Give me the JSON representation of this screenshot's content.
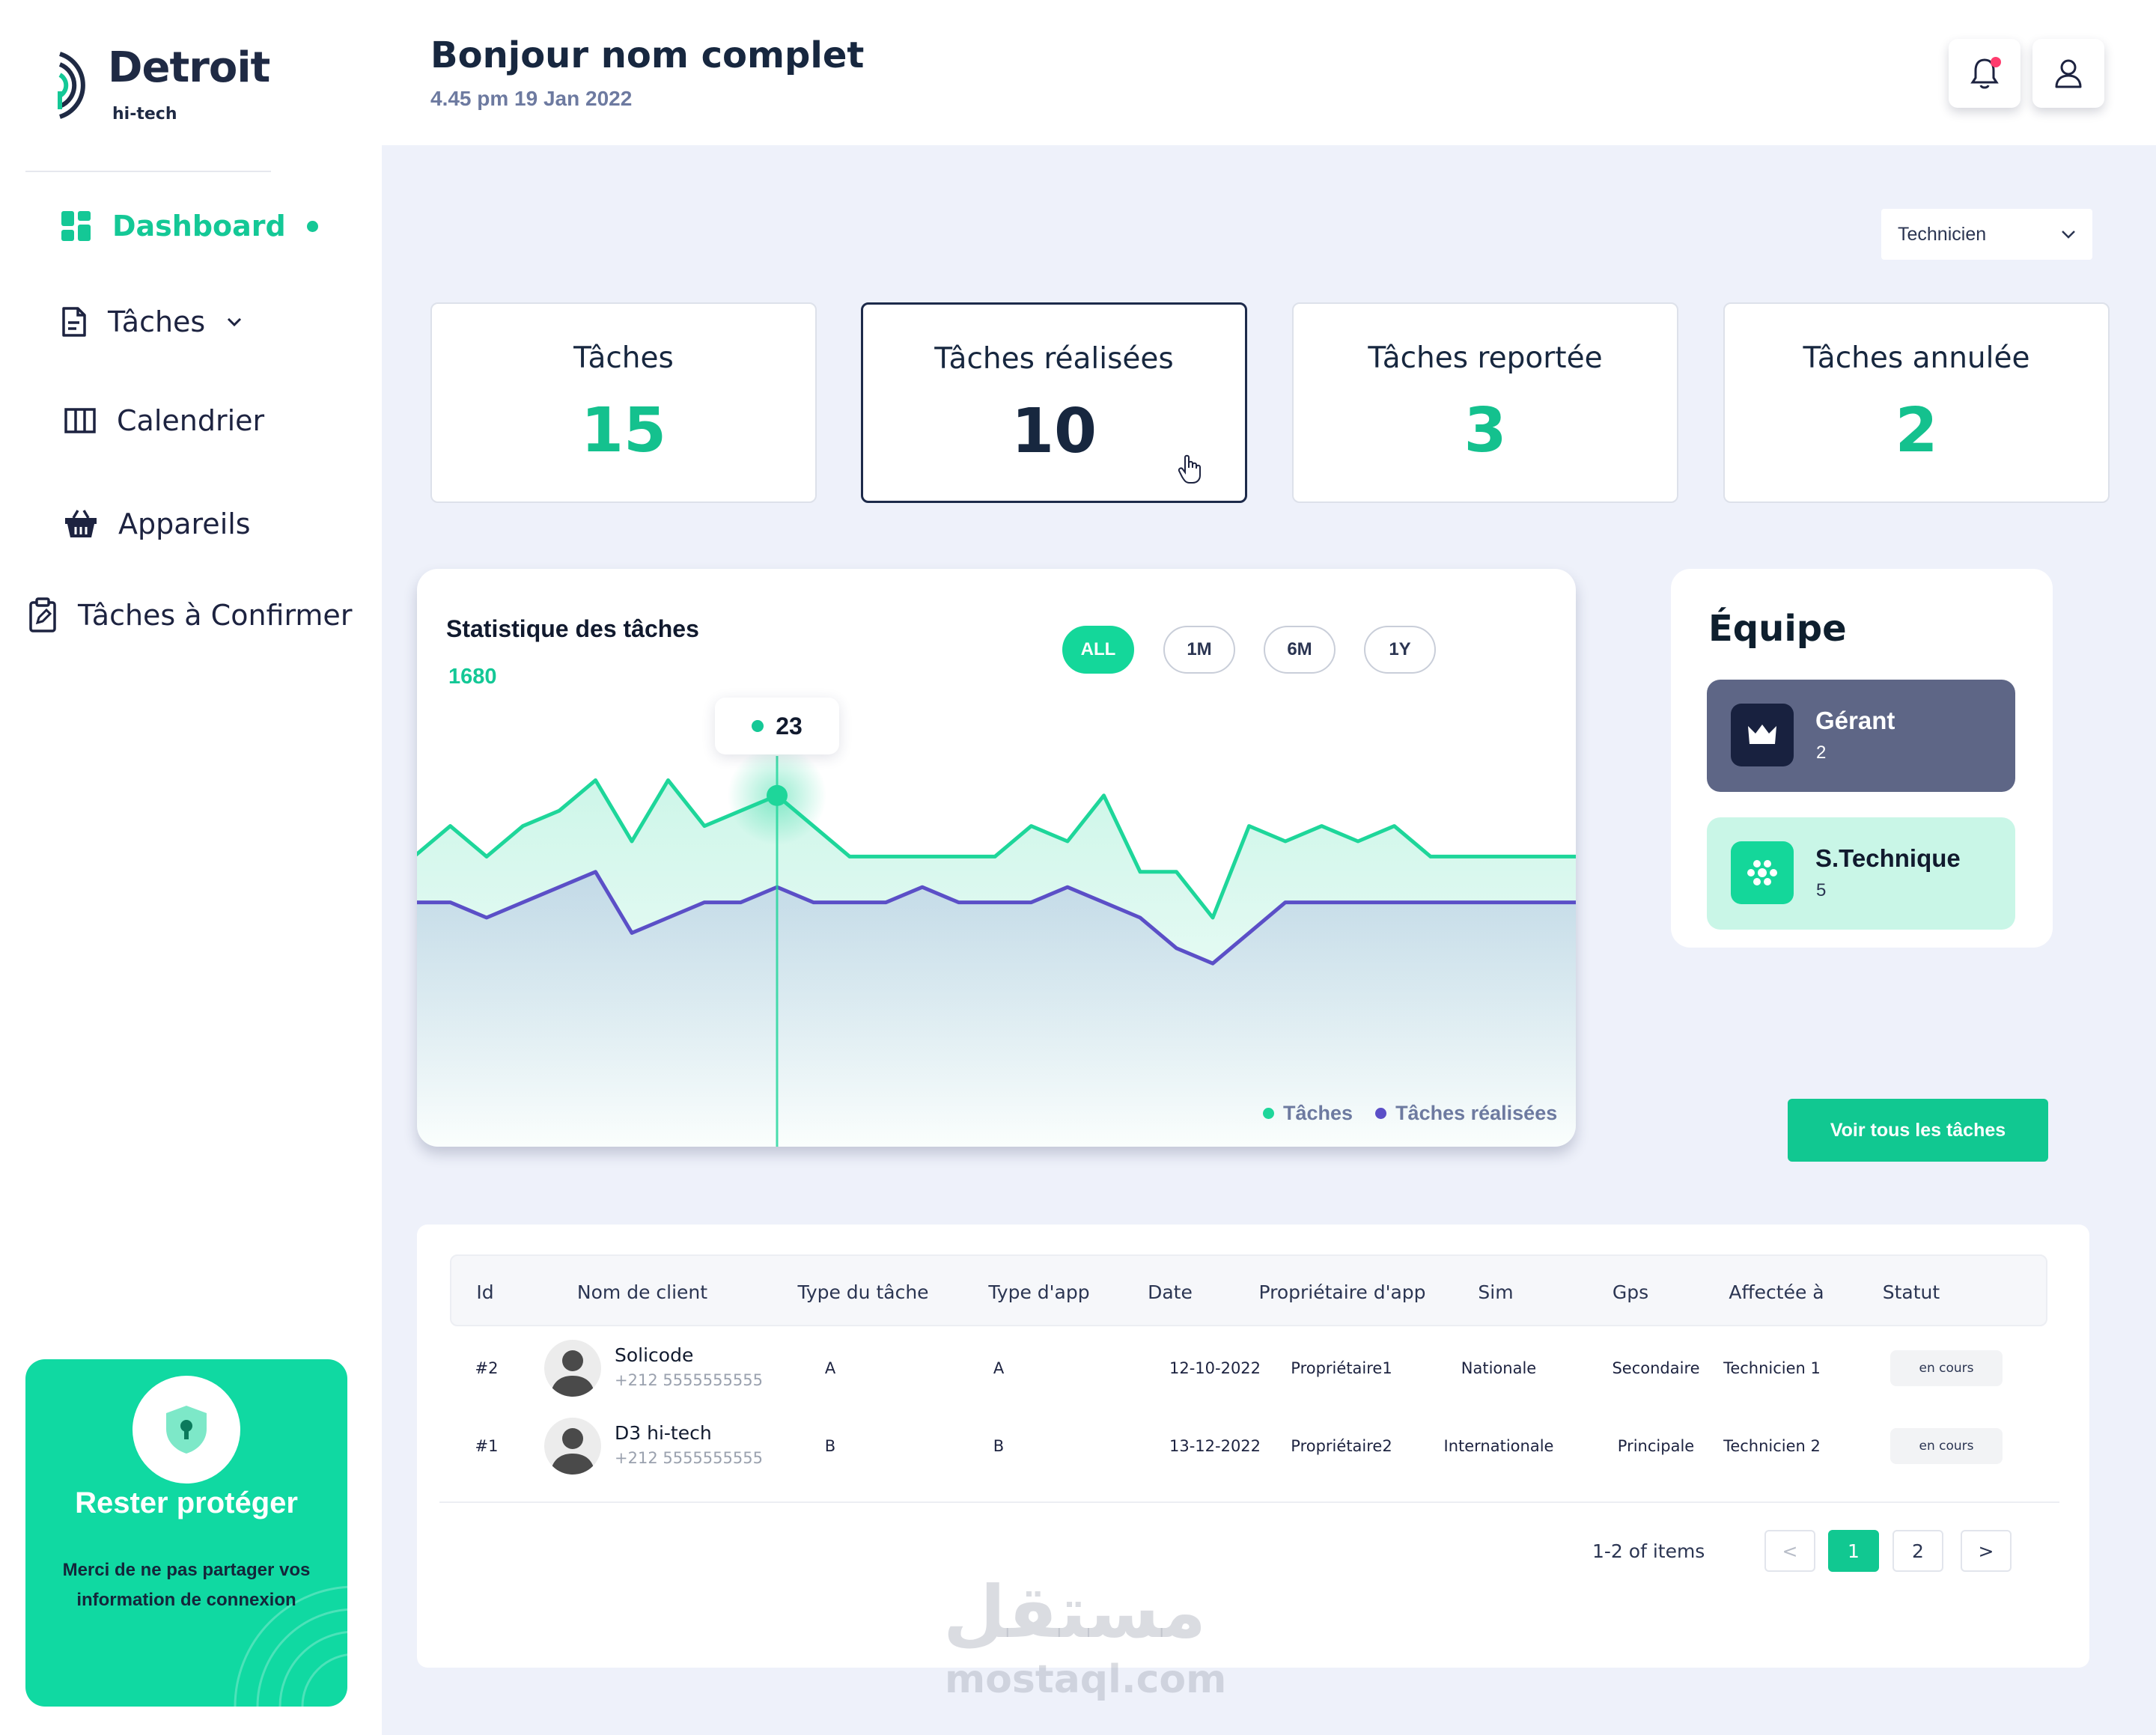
{
  "brand": {
    "name": "Detroit",
    "sub": "hi-tech"
  },
  "sidebar": {
    "items": [
      {
        "label": "Dashboard",
        "icon": "dashboard-grid-icon",
        "active": true
      },
      {
        "label": "Tâches",
        "icon": "document-icon",
        "has_chevron": true
      },
      {
        "label": "Calendrier",
        "icon": "columns-icon"
      },
      {
        "label": "Appareils",
        "icon": "basket-icon"
      },
      {
        "label": "Tâches à Confirmer",
        "icon": "clipboard-edit-icon"
      }
    ],
    "protect_card": {
      "title": "Rester protéger",
      "text": "Merci de ne pas partager vos information de connexion",
      "icon": "shield-lock-icon"
    }
  },
  "header": {
    "greeting": "Bonjour nom complet",
    "datetime": "4.45 pm 19 Jan 2022",
    "notification_icon": "bell-icon",
    "user_icon": "user-icon"
  },
  "filter": {
    "selected": "Technicien"
  },
  "stats": [
    {
      "label": "Tâches",
      "value": "15"
    },
    {
      "label": "Tâches réalisées",
      "value": "10",
      "active": true
    },
    {
      "label": "Tâches reportée",
      "value": "3"
    },
    {
      "label": "Tâches annulée",
      "value": "2"
    }
  ],
  "chart": {
    "title": "Statistique des tâches",
    "total": "1680",
    "ranges": [
      "ALL",
      "1M",
      "6M",
      "1Y"
    ],
    "active_range": "ALL",
    "tooltip_value": "23",
    "legend": [
      "Tâches",
      "Tâches réalisées"
    ],
    "colors": {
      "taches": "#1ed69a",
      "realisees": "#5b4fc7"
    }
  },
  "chart_data": {
    "type": "line",
    "title": "Statistique des tâches",
    "x": [
      0,
      1,
      2,
      3,
      4,
      5,
      6,
      7,
      8,
      9,
      10,
      11,
      12,
      13,
      14,
      15,
      16,
      17,
      18,
      19,
      20,
      21,
      22,
      23,
      24,
      25,
      26,
      27,
      28,
      29,
      30,
      31,
      32
    ],
    "series": [
      {
        "name": "Tâches",
        "values": [
          19,
          21,
          19,
          21,
          22,
          24,
          20,
          24,
          21,
          22,
          23,
          21,
          19,
          19,
          19,
          19,
          19,
          21,
          20,
          23,
          18,
          18,
          15,
          21,
          20,
          21,
          20,
          21,
          19,
          19,
          19,
          19,
          19
        ]
      },
      {
        "name": "Tâches réalisées",
        "values": [
          16,
          16,
          15,
          16,
          17,
          18,
          14,
          15,
          16,
          16,
          17,
          16,
          16,
          16,
          17,
          16,
          16,
          16,
          17,
          16,
          15,
          13,
          12,
          14,
          16,
          16,
          16,
          16,
          16,
          16,
          16,
          16,
          16
        ]
      }
    ],
    "highlight": {
      "series": "Tâches",
      "value": 23
    },
    "legend": "bottom-right",
    "grid": false
  },
  "team": {
    "title": "Équipe",
    "groups": [
      {
        "name": "Gérant",
        "count": "2",
        "icon": "crown-icon"
      },
      {
        "name": "S.Technique",
        "count": "5",
        "icon": "team-dots-icon"
      }
    ]
  },
  "see_all_label": "Voir tous les tâches",
  "table": {
    "columns": [
      "Id",
      "Nom de client",
      "Type du tâche",
      "Type d'app",
      "Date",
      "Propriétaire d'app",
      "Sim",
      "Gps",
      "Affectée à",
      "Statut"
    ],
    "rows": [
      {
        "id": "#2",
        "client": "Solicode",
        "phone": "+212 5555555555",
        "type_tache": "A",
        "type_app": "A",
        "date": "12-10-2022",
        "proprietaire": "Propriétaire1",
        "sim": "Nationale",
        "gps": "Secondaire",
        "affectee": "Technicien 1",
        "statut": "en cours"
      },
      {
        "id": "#1",
        "client": "D3 hi-tech",
        "phone": "+212 5555555555",
        "type_tache": "B",
        "type_app": "B",
        "date": "13-12-2022",
        "proprietaire": "Propriétaire2",
        "sim": "Internationale",
        "gps": "Principale",
        "affectee": "Technicien 2",
        "statut": "en cours"
      }
    ],
    "pagination": {
      "info": "1-2 of items",
      "pages": [
        "1",
        "2"
      ],
      "current": "1",
      "prev": "<",
      "next": ">"
    }
  },
  "watermark": {
    "arabic": "مستقل",
    "latin": "mostaql.com"
  }
}
